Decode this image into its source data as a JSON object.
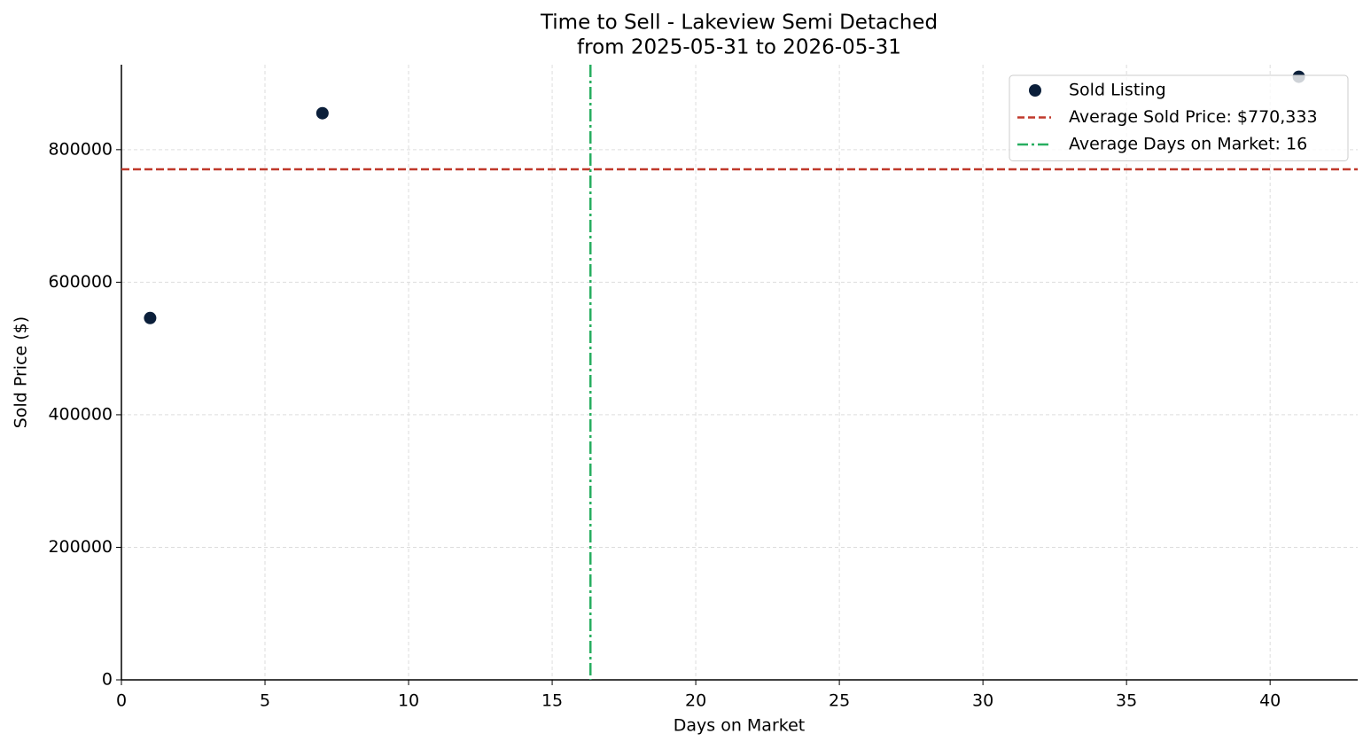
{
  "chart_data": {
    "type": "scatter",
    "title": "Time to Sell - Lakeview Semi Detached",
    "subtitle": "from 2025-05-31 to 2026-05-31",
    "x_label": "Days on Market",
    "y_label": "Sold Price ($)",
    "series": [
      {
        "name": "Sold Listing",
        "color": "#0b1f3a",
        "x": [
          1,
          7,
          41
        ],
        "values": [
          546000,
          855000,
          910000
        ]
      }
    ],
    "hlines": [
      {
        "label": "Average Sold Price: $770,333",
        "value": 770333,
        "color": "#c0392b"
      }
    ],
    "vlines": [
      {
        "label": "Average Days on Market: 16",
        "value": 16.333,
        "color": "#27ae60"
      }
    ],
    "xlim": [
      0,
      43.05
    ],
    "ylim": [
      0,
      928200
    ],
    "xticks": [
      0,
      5,
      10,
      15,
      20,
      25,
      30,
      35,
      40
    ],
    "yticks": [
      0,
      200000,
      400000,
      600000,
      800000
    ],
    "grid": true,
    "legend": "upper right"
  }
}
